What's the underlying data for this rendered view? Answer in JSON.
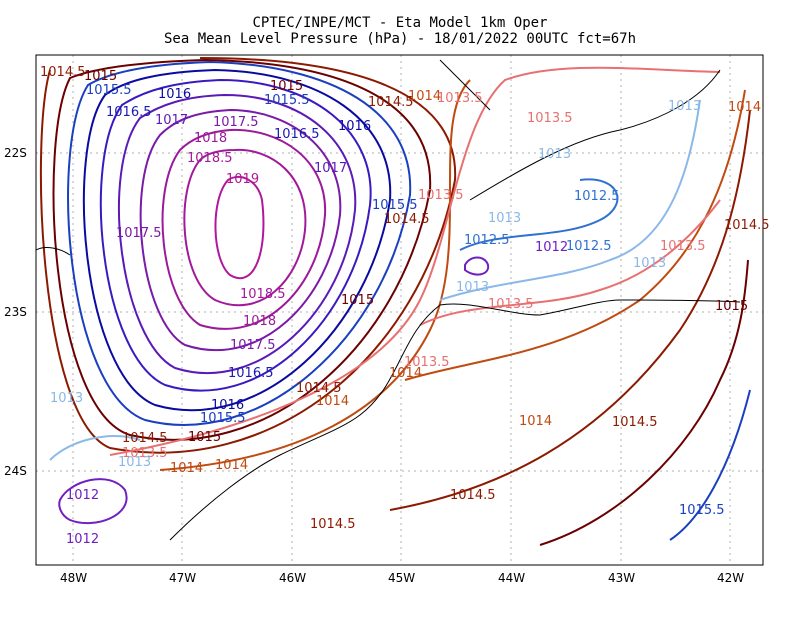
{
  "title": {
    "line1": "CPTEC/INPE/MCT -  Eta Model 1km Oper",
    "line2": "Sea Mean Level Pressure (hPa) - 18/01/2022 00UTC fct=67h"
  },
  "axes": {
    "x_ticks": [
      "48W",
      "47W",
      "46W",
      "45W",
      "44W",
      "43W",
      "42W"
    ],
    "y_ticks": [
      "22S",
      "23S",
      "24S"
    ],
    "grid": "dotted"
  },
  "contour_labels": [
    {
      "text": "1014.5",
      "color": "#8b1a00"
    },
    {
      "text": "1015",
      "color": "#6b0000"
    },
    {
      "text": "1015.5",
      "color": "#1a3fbf"
    },
    {
      "text": "1016",
      "color": "#0a0aa0"
    },
    {
      "text": "1016.5",
      "color": "#1a1ab0"
    },
    {
      "text": "1017",
      "color": "#5a1ab8"
    },
    {
      "text": "1017.5",
      "color": "#7a1aa8"
    },
    {
      "text": "1018",
      "color": "#9a1a9a"
    },
    {
      "text": "1018.5",
      "color": "#a21a9a"
    },
    {
      "text": "1019",
      "color": "#b0189a"
    },
    {
      "text": "1014",
      "color": "#c04a10"
    },
    {
      "text": "1013.5",
      "color": "#e87070"
    },
    {
      "text": "1013",
      "color": "#8ab8e8"
    },
    {
      "text": "1012.5",
      "color": "#3070d0"
    },
    {
      "text": "1012",
      "color": "#7020c0"
    }
  ],
  "colors": {
    "frame": "#000000",
    "coast": "#000000",
    "grid": "#b0b0b0"
  }
}
